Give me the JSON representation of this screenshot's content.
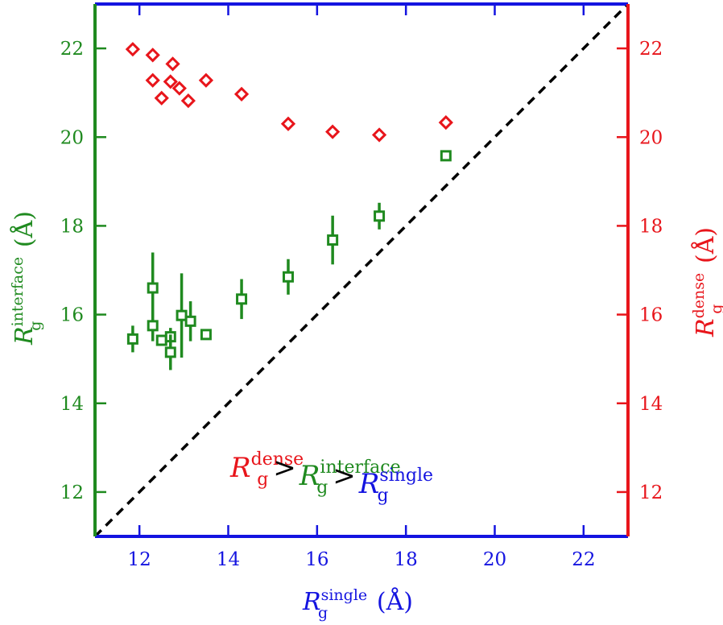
{
  "colors": {
    "left": "#1f8a1f",
    "right": "#e8151b",
    "bottom": "#1414e0",
    "diagonal": "#000000"
  },
  "chart_data": {
    "type": "scatter",
    "x_label": {
      "symbol": "R",
      "subscript": "g",
      "superscript": "single",
      "unit": "(Å)"
    },
    "y_left_label": {
      "symbol": "R",
      "subscript": "g",
      "superscript": "interface",
      "unit": "(Å)"
    },
    "y_right_label": {
      "symbol": "R",
      "subscript": "g",
      "superscript": "dense",
      "unit": "(Å)"
    },
    "xlim": [
      11,
      23
    ],
    "ylim": [
      11,
      23
    ],
    "x_ticks": [
      12,
      14,
      16,
      18,
      20,
      22
    ],
    "y_ticks": [
      12,
      14,
      16,
      18,
      20,
      22
    ],
    "x_tick_labels": [
      "12",
      "14",
      "16",
      "18",
      "20",
      "22"
    ],
    "y_left_tick_labels": [
      "12",
      "14",
      "16",
      "18",
      "20",
      "22"
    ],
    "y_right_tick_labels": [
      "12",
      "14",
      "16",
      "18",
      "20",
      "22"
    ],
    "reference_line": {
      "style": "dashed",
      "from": [
        11,
        11
      ],
      "to": [
        23,
        23
      ]
    },
    "series": [
      {
        "axis": "left",
        "marker": "square",
        "color": "#1f8a1f",
        "points": [
          {
            "x": 11.85,
            "y": 15.45,
            "err": 0.3
          },
          {
            "x": 12.3,
            "y": 16.6,
            "err": 0.8
          },
          {
            "x": 12.3,
            "y": 15.75,
            "err": 0.35
          },
          {
            "x": 12.5,
            "y": 15.42,
            "err": 0.1
          },
          {
            "x": 12.7,
            "y": 15.5,
            "err": 0.2
          },
          {
            "x": 12.7,
            "y": 15.15,
            "err": 0.4
          },
          {
            "x": 12.95,
            "y": 15.98,
            "err": 0.95
          },
          {
            "x": 13.15,
            "y": 15.85,
            "err": 0.45
          },
          {
            "x": 13.5,
            "y": 15.55,
            "err": 0.1
          },
          {
            "x": 14.3,
            "y": 16.35,
            "err": 0.45
          },
          {
            "x": 15.35,
            "y": 16.85,
            "err": 0.4
          },
          {
            "x": 16.35,
            "y": 17.68,
            "err": 0.55
          },
          {
            "x": 17.4,
            "y": 18.22,
            "err": 0.3
          },
          {
            "x": 18.9,
            "y": 19.58,
            "err": 0.12
          }
        ]
      },
      {
        "axis": "right",
        "marker": "diamond",
        "color": "#e8151b",
        "points": [
          {
            "x": 11.85,
            "y": 21.98
          },
          {
            "x": 12.3,
            "y": 21.85
          },
          {
            "x": 12.3,
            "y": 21.28
          },
          {
            "x": 12.5,
            "y": 20.88
          },
          {
            "x": 12.7,
            "y": 21.25
          },
          {
            "x": 12.75,
            "y": 21.65
          },
          {
            "x": 12.9,
            "y": 21.1
          },
          {
            "x": 13.1,
            "y": 20.82
          },
          {
            "x": 13.5,
            "y": 21.28
          },
          {
            "x": 14.3,
            "y": 20.97
          },
          {
            "x": 15.35,
            "y": 20.3
          },
          {
            "x": 16.35,
            "y": 20.12
          },
          {
            "x": 17.4,
            "y": 20.05
          },
          {
            "x": 18.9,
            "y": 20.33
          }
        ]
      }
    ],
    "annotation": {
      "parts": [
        {
          "symbol": "R",
          "sub": "g",
          "sup": "dense",
          "color": "#e8151b"
        },
        {
          "op": ">"
        },
        {
          "symbol": "R",
          "sub": "g",
          "sup": "interface",
          "color": "#1f8a1f"
        },
        {
          "op": ">"
        },
        {
          "symbol": "R",
          "sub": "g",
          "sup": "single",
          "color": "#1414e0"
        }
      ]
    }
  }
}
